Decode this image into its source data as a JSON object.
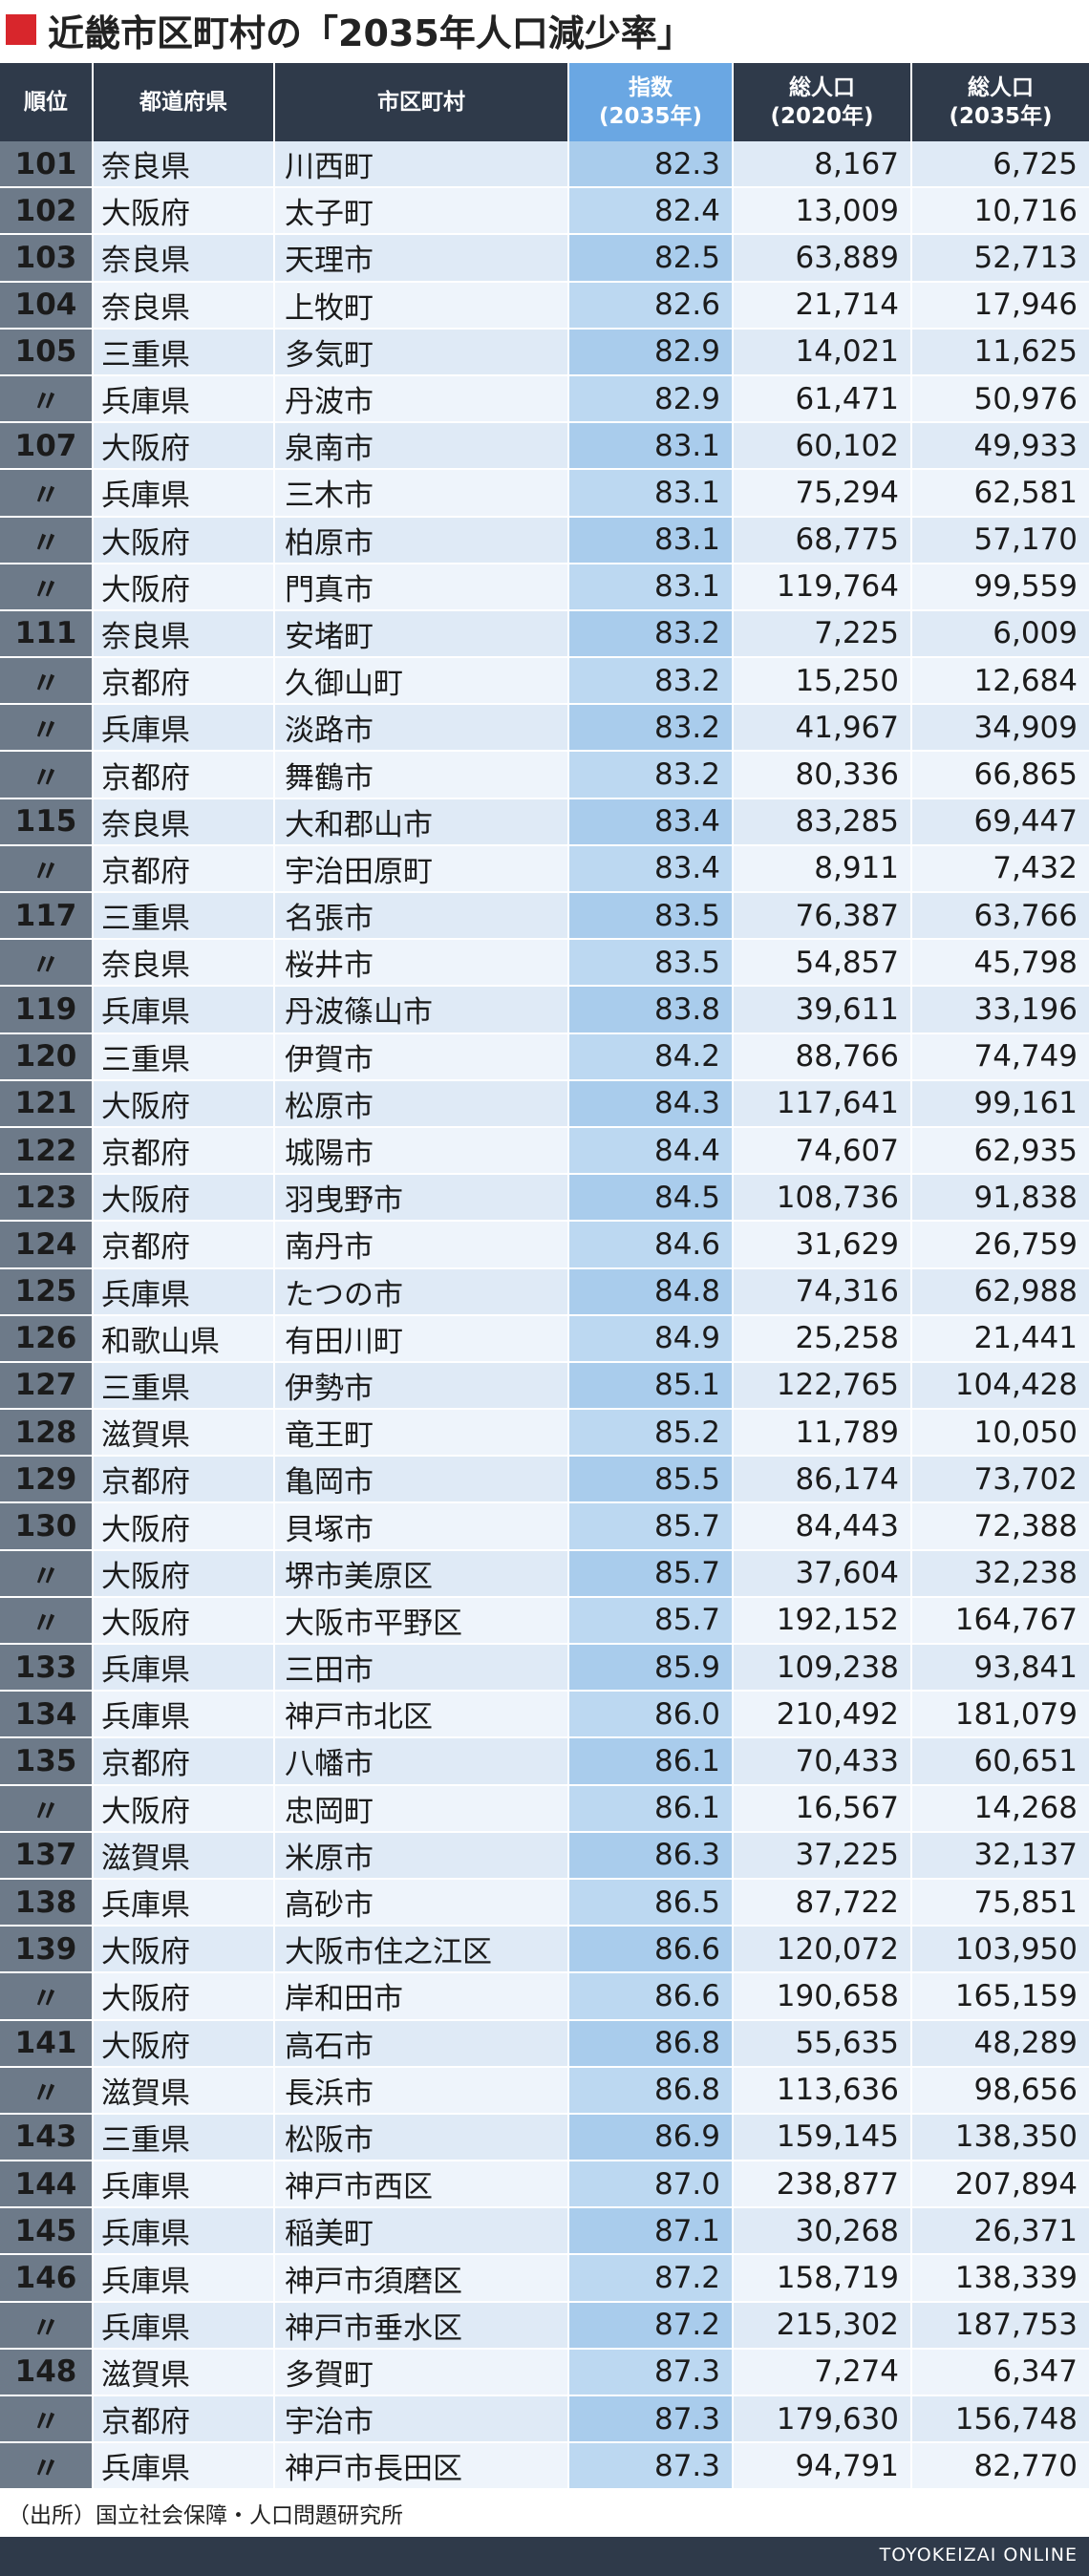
{
  "title": "近畿市区町村の「2035年人口減少率」",
  "headers": {
    "rank": "順位",
    "pref": "都道府県",
    "city": "市区町村",
    "index_line1": "指数",
    "index_line2": "(2035年)",
    "pop2020_line1": "総人口",
    "pop2020_line2": "(2020年)",
    "pop2035_line1": "総人口",
    "pop2035_line2": "(2035年)"
  },
  "rows": [
    {
      "rank": "101",
      "pref": "奈良県",
      "city": "川西町",
      "index": "82.3",
      "pop2020": "8,167",
      "pop2035": "6,725"
    },
    {
      "rank": "102",
      "pref": "大阪府",
      "city": "太子町",
      "index": "82.4",
      "pop2020": "13,009",
      "pop2035": "10,716"
    },
    {
      "rank": "103",
      "pref": "奈良県",
      "city": "天理市",
      "index": "82.5",
      "pop2020": "63,889",
      "pop2035": "52,713"
    },
    {
      "rank": "104",
      "pref": "奈良県",
      "city": "上牧町",
      "index": "82.6",
      "pop2020": "21,714",
      "pop2035": "17,946"
    },
    {
      "rank": "105",
      "pref": "三重県",
      "city": "多気町",
      "index": "82.9",
      "pop2020": "14,021",
      "pop2035": "11,625"
    },
    {
      "rank": "〃",
      "pref": "兵庫県",
      "city": "丹波市",
      "index": "82.9",
      "pop2020": "61,471",
      "pop2035": "50,976"
    },
    {
      "rank": "107",
      "pref": "大阪府",
      "city": "泉南市",
      "index": "83.1",
      "pop2020": "60,102",
      "pop2035": "49,933"
    },
    {
      "rank": "〃",
      "pref": "兵庫県",
      "city": "三木市",
      "index": "83.1",
      "pop2020": "75,294",
      "pop2035": "62,581"
    },
    {
      "rank": "〃",
      "pref": "大阪府",
      "city": "柏原市",
      "index": "83.1",
      "pop2020": "68,775",
      "pop2035": "57,170"
    },
    {
      "rank": "〃",
      "pref": "大阪府",
      "city": "門真市",
      "index": "83.1",
      "pop2020": "119,764",
      "pop2035": "99,559"
    },
    {
      "rank": "111",
      "pref": "奈良県",
      "city": "安堵町",
      "index": "83.2",
      "pop2020": "7,225",
      "pop2035": "6,009"
    },
    {
      "rank": "〃",
      "pref": "京都府",
      "city": "久御山町",
      "index": "83.2",
      "pop2020": "15,250",
      "pop2035": "12,684"
    },
    {
      "rank": "〃",
      "pref": "兵庫県",
      "city": "淡路市",
      "index": "83.2",
      "pop2020": "41,967",
      "pop2035": "34,909"
    },
    {
      "rank": "〃",
      "pref": "京都府",
      "city": "舞鶴市",
      "index": "83.2",
      "pop2020": "80,336",
      "pop2035": "66,865"
    },
    {
      "rank": "115",
      "pref": "奈良県",
      "city": "大和郡山市",
      "index": "83.4",
      "pop2020": "83,285",
      "pop2035": "69,447"
    },
    {
      "rank": "〃",
      "pref": "京都府",
      "city": "宇治田原町",
      "index": "83.4",
      "pop2020": "8,911",
      "pop2035": "7,432"
    },
    {
      "rank": "117",
      "pref": "三重県",
      "city": "名張市",
      "index": "83.5",
      "pop2020": "76,387",
      "pop2035": "63,766"
    },
    {
      "rank": "〃",
      "pref": "奈良県",
      "city": "桜井市",
      "index": "83.5",
      "pop2020": "54,857",
      "pop2035": "45,798"
    },
    {
      "rank": "119",
      "pref": "兵庫県",
      "city": "丹波篠山市",
      "index": "83.8",
      "pop2020": "39,611",
      "pop2035": "33,196"
    },
    {
      "rank": "120",
      "pref": "三重県",
      "city": "伊賀市",
      "index": "84.2",
      "pop2020": "88,766",
      "pop2035": "74,749"
    },
    {
      "rank": "121",
      "pref": "大阪府",
      "city": "松原市",
      "index": "84.3",
      "pop2020": "117,641",
      "pop2035": "99,161"
    },
    {
      "rank": "122",
      "pref": "京都府",
      "city": "城陽市",
      "index": "84.4",
      "pop2020": "74,607",
      "pop2035": "62,935"
    },
    {
      "rank": "123",
      "pref": "大阪府",
      "city": "羽曳野市",
      "index": "84.5",
      "pop2020": "108,736",
      "pop2035": "91,838"
    },
    {
      "rank": "124",
      "pref": "京都府",
      "city": "南丹市",
      "index": "84.6",
      "pop2020": "31,629",
      "pop2035": "26,759"
    },
    {
      "rank": "125",
      "pref": "兵庫県",
      "city": "たつの市",
      "index": "84.8",
      "pop2020": "74,316",
      "pop2035": "62,988"
    },
    {
      "rank": "126",
      "pref": "和歌山県",
      "city": "有田川町",
      "index": "84.9",
      "pop2020": "25,258",
      "pop2035": "21,441"
    },
    {
      "rank": "127",
      "pref": "三重県",
      "city": "伊勢市",
      "index": "85.1",
      "pop2020": "122,765",
      "pop2035": "104,428"
    },
    {
      "rank": "128",
      "pref": "滋賀県",
      "city": "竜王町",
      "index": "85.2",
      "pop2020": "11,789",
      "pop2035": "10,050"
    },
    {
      "rank": "129",
      "pref": "京都府",
      "city": "亀岡市",
      "index": "85.5",
      "pop2020": "86,174",
      "pop2035": "73,702"
    },
    {
      "rank": "130",
      "pref": "大阪府",
      "city": "貝塚市",
      "index": "85.7",
      "pop2020": "84,443",
      "pop2035": "72,388"
    },
    {
      "rank": "〃",
      "pref": "大阪府",
      "city": "堺市美原区",
      "index": "85.7",
      "pop2020": "37,604",
      "pop2035": "32,238"
    },
    {
      "rank": "〃",
      "pref": "大阪府",
      "city": "大阪市平野区",
      "index": "85.7",
      "pop2020": "192,152",
      "pop2035": "164,767"
    },
    {
      "rank": "133",
      "pref": "兵庫県",
      "city": "三田市",
      "index": "85.9",
      "pop2020": "109,238",
      "pop2035": "93,841"
    },
    {
      "rank": "134",
      "pref": "兵庫県",
      "city": "神戸市北区",
      "index": "86.0",
      "pop2020": "210,492",
      "pop2035": "181,079"
    },
    {
      "rank": "135",
      "pref": "京都府",
      "city": "八幡市",
      "index": "86.1",
      "pop2020": "70,433",
      "pop2035": "60,651"
    },
    {
      "rank": "〃",
      "pref": "大阪府",
      "city": "忠岡町",
      "index": "86.1",
      "pop2020": "16,567",
      "pop2035": "14,268"
    },
    {
      "rank": "137",
      "pref": "滋賀県",
      "city": "米原市",
      "index": "86.3",
      "pop2020": "37,225",
      "pop2035": "32,137"
    },
    {
      "rank": "138",
      "pref": "兵庫県",
      "city": "高砂市",
      "index": "86.5",
      "pop2020": "87,722",
      "pop2035": "75,851"
    },
    {
      "rank": "139",
      "pref": "大阪府",
      "city": "大阪市住之江区",
      "index": "86.6",
      "pop2020": "120,072",
      "pop2035": "103,950"
    },
    {
      "rank": "〃",
      "pref": "大阪府",
      "city": "岸和田市",
      "index": "86.6",
      "pop2020": "190,658",
      "pop2035": "165,159"
    },
    {
      "rank": "141",
      "pref": "大阪府",
      "city": "高石市",
      "index": "86.8",
      "pop2020": "55,635",
      "pop2035": "48,289"
    },
    {
      "rank": "〃",
      "pref": "滋賀県",
      "city": "長浜市",
      "index": "86.8",
      "pop2020": "113,636",
      "pop2035": "98,656"
    },
    {
      "rank": "143",
      "pref": "三重県",
      "city": "松阪市",
      "index": "86.9",
      "pop2020": "159,145",
      "pop2035": "138,350"
    },
    {
      "rank": "144",
      "pref": "兵庫県",
      "city": "神戸市西区",
      "index": "87.0",
      "pop2020": "238,877",
      "pop2035": "207,894"
    },
    {
      "rank": "145",
      "pref": "兵庫県",
      "city": "稲美町",
      "index": "87.1",
      "pop2020": "30,268",
      "pop2035": "26,371"
    },
    {
      "rank": "146",
      "pref": "兵庫県",
      "city": "神戸市須磨区",
      "index": "87.2",
      "pop2020": "158,719",
      "pop2035": "138,339"
    },
    {
      "rank": "〃",
      "pref": "兵庫県",
      "city": "神戸市垂水区",
      "index": "87.2",
      "pop2020": "215,302",
      "pop2035": "187,753"
    },
    {
      "rank": "148",
      "pref": "滋賀県",
      "city": "多賀町",
      "index": "87.3",
      "pop2020": "7,274",
      "pop2035": "6,347"
    },
    {
      "rank": "〃",
      "pref": "京都府",
      "city": "宇治市",
      "index": "87.3",
      "pop2020": "179,630",
      "pop2035": "156,748"
    },
    {
      "rank": "〃",
      "pref": "兵庫県",
      "city": "神戸市長田区",
      "index": "87.3",
      "pop2020": "94,791",
      "pop2035": "82,770"
    }
  ],
  "source": "（出所）国立社会保障・人口問題研究所",
  "brand": "TOYOKEIZAI ONLINE",
  "colors": {
    "accent": "#d8262c",
    "header_bg": "#2f3a4a",
    "index_header_bg": "#6aa7e3",
    "rank_bg": "#6d7a89"
  }
}
